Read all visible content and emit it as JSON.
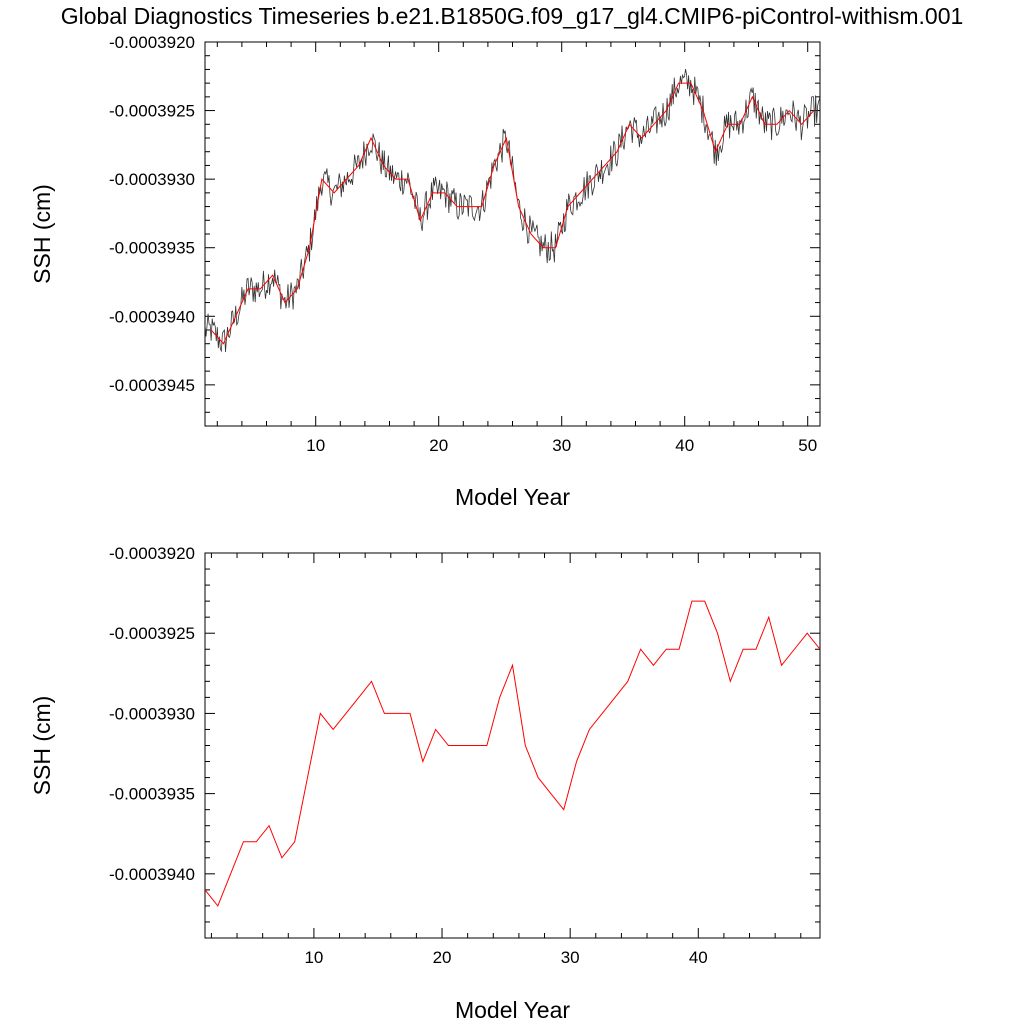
{
  "title": "Global Diagnostics Timeseries b.e21.B1850G.f09_g17_gl4.CMIP6-piControl-withism.001",
  "colors": {
    "monthly": "#333333",
    "annual": "#ff0000",
    "axis": "#000000",
    "background": "#ffffff"
  },
  "chart_data": [
    {
      "type": "line",
      "xlabel": "Model Year",
      "ylabel": "SSH (cm)",
      "xlim": [
        1,
        51
      ],
      "ylim": [
        -0.0003948,
        -0.000392
      ],
      "xticks": [
        10,
        20,
        30,
        40,
        50
      ],
      "xtick_labels": [
        "10",
        "20",
        "30",
        "40",
        "50"
      ],
      "yticks": [
        -0.000392,
        -0.0003925,
        -0.000393,
        -0.0003935,
        -0.000394,
        -0.0003945
      ],
      "ytick_labels": [
        "-0.0003920",
        "-0.0003925",
        "-0.0003930",
        "-0.0003935",
        "-0.0003940",
        "-0.0003945"
      ],
      "grid": false,
      "series": [
        {
          "style": "monthly",
          "x_start": 1.0,
          "x_step": 0.0833,
          "noise_amplitude": 1.2e-07,
          "description_of_values": "monthly values fluctuating around the annual curve"
        },
        {
          "style": "annual",
          "x": [
            1.5,
            2.5,
            3.5,
            4.5,
            5.5,
            6.5,
            7.5,
            8.5,
            9.5,
            10.5,
            11.5,
            12.5,
            13.5,
            14.5,
            15.5,
            16.5,
            17.5,
            18.5,
            19.5,
            20.5,
            21.5,
            22.5,
            23.5,
            24.5,
            25.5,
            26.5,
            27.5,
            28.5,
            29.5,
            30.5,
            31.5,
            32.5,
            33.5,
            34.5,
            35.5,
            36.5,
            37.5,
            38.5,
            39.5,
            40.5,
            41.5,
            42.5,
            43.5,
            44.5,
            45.5,
            46.5,
            47.5,
            48.5,
            49.5,
            50.5
          ],
          "y": [
            -0.0003941,
            -0.0003942,
            -0.000394,
            -0.0003938,
            -0.0003938,
            -0.0003937,
            -0.0003939,
            -0.0003938,
            -0.0003935,
            -0.000393,
            -0.0003931,
            -0.000393,
            -0.0003929,
            -0.0003927,
            -0.0003929,
            -0.000393,
            -0.000393,
            -0.0003933,
            -0.0003931,
            -0.0003931,
            -0.0003932,
            -0.0003932,
            -0.0003932,
            -0.0003929,
            -0.0003927,
            -0.0003932,
            -0.0003934,
            -0.0003935,
            -0.0003935,
            -0.0003932,
            -0.0003931,
            -0.000393,
            -0.0003929,
            -0.0003928,
            -0.0003926,
            -0.0003927,
            -0.0003926,
            -0.0003925,
            -0.0003923,
            -0.0003923,
            -0.0003925,
            -0.0003928,
            -0.0003926,
            -0.0003926,
            -0.0003924,
            -0.0003926,
            -0.0003926,
            -0.0003925,
            -0.0003926,
            -0.0003925
          ]
        }
      ]
    },
    {
      "type": "line",
      "xlabel": "Model Year",
      "ylabel": "SSH (cm)",
      "xlim": [
        1.5,
        49.5
      ],
      "ylim": [
        -0.0003944,
        -0.000392
      ],
      "xticks": [
        10,
        20,
        30,
        40
      ],
      "xtick_labels": [
        "10",
        "20",
        "30",
        "40"
      ],
      "yticks": [
        -0.000392,
        -0.0003925,
        -0.000393,
        -0.0003935,
        -0.000394
      ],
      "ytick_labels": [
        "-0.0003920",
        "-0.0003925",
        "-0.0003930",
        "-0.0003935",
        "-0.0003940"
      ],
      "grid": false,
      "series": [
        {
          "style": "annual",
          "x": [
            1.5,
            2.5,
            3.5,
            4.5,
            5.5,
            6.5,
            7.5,
            8.5,
            9.5,
            10.5,
            11.5,
            12.5,
            13.5,
            14.5,
            15.5,
            16.5,
            17.5,
            18.5,
            19.5,
            20.5,
            21.5,
            22.5,
            23.5,
            24.5,
            25.5,
            26.5,
            27.5,
            28.5,
            29.5,
            30.5,
            31.5,
            32.5,
            33.5,
            34.5,
            35.5,
            36.5,
            37.5,
            38.5,
            39.5,
            40.5,
            41.5,
            42.5,
            43.5,
            44.5,
            45.5,
            46.5,
            47.5,
            48.5,
            49.5
          ],
          "y": [
            -0.0003941,
            -0.0003942,
            -0.000394,
            -0.0003938,
            -0.0003938,
            -0.0003937,
            -0.0003939,
            -0.0003938,
            -0.0003934,
            -0.000393,
            -0.0003931,
            -0.000393,
            -0.0003929,
            -0.0003928,
            -0.000393,
            -0.000393,
            -0.000393,
            -0.0003933,
            -0.0003931,
            -0.0003932,
            -0.0003932,
            -0.0003932,
            -0.0003932,
            -0.0003929,
            -0.0003927,
            -0.0003932,
            -0.0003934,
            -0.0003935,
            -0.0003936,
            -0.0003933,
            -0.0003931,
            -0.000393,
            -0.0003929,
            -0.0003928,
            -0.0003926,
            -0.0003927,
            -0.0003926,
            -0.0003926,
            -0.0003923,
            -0.0003923,
            -0.0003925,
            -0.0003928,
            -0.0003926,
            -0.0003926,
            -0.0003924,
            -0.0003927,
            -0.0003926,
            -0.0003925,
            -0.0003926
          ]
        }
      ]
    }
  ]
}
